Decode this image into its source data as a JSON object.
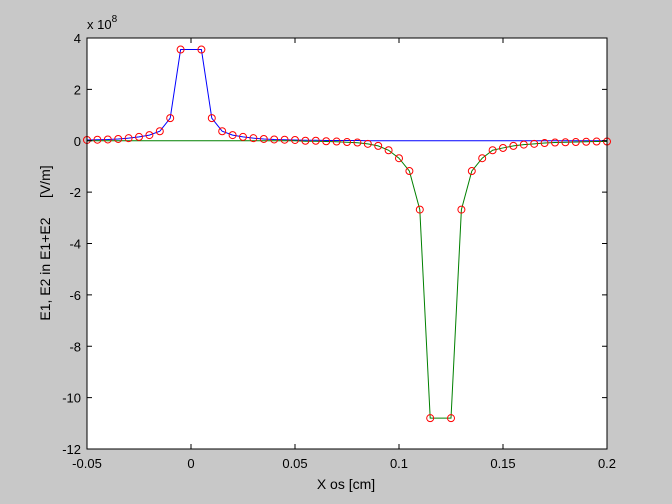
{
  "chart_data": {
    "type": "line",
    "xlabel": "X os   [cm]",
    "ylabel": "E1, E2 in E1+E2     [V/m]",
    "y_exponent_label": "x 10",
    "y_exponent": "8",
    "xlim": [
      -0.05,
      0.2
    ],
    "ylim": [
      -12,
      4
    ],
    "x_ticks": [
      -0.05,
      0,
      0.05,
      0.1,
      0.15,
      0.2
    ],
    "x_tick_labels": [
      "-0.05",
      "0",
      "0.05",
      "0.1",
      "0.15",
      "0.2"
    ],
    "y_ticks": [
      -12,
      -10,
      -8,
      -6,
      -4,
      -2,
      0,
      2,
      4
    ],
    "y_tick_labels": [
      "-12",
      "-10",
      "-8",
      "-6",
      "-4",
      "-2",
      "0",
      "2",
      "4"
    ],
    "grid": false,
    "colors": {
      "background": "#c8c8c8",
      "plot_area": "#ffffff",
      "series_e1": "#0000ff",
      "series_e2": "#008000",
      "markers": "#ff0000"
    },
    "series": [
      {
        "x": [
          -0.05,
          -0.045,
          -0.04,
          -0.035,
          -0.03,
          -0.025,
          -0.02,
          -0.015,
          -0.01,
          -0.005,
          0.005,
          0.01,
          0.015,
          0.02,
          0.025,
          0.03,
          0.035,
          0.04,
          0.045,
          0.05,
          0.055,
          0.06,
          0.065,
          0.07,
          0.075,
          0.08,
          0.085,
          0.09,
          0.095,
          0.1,
          0.105,
          0.11,
          0.115,
          0.125,
          0.13,
          0.135,
          0.14,
          0.145,
          0.15,
          0.155,
          0.16,
          0.165,
          0.17,
          0.175,
          0.18,
          0.185,
          0.19,
          0.195,
          0.2
        ],
        "values": [
          0.03,
          0.04,
          0.05,
          0.07,
          0.1,
          0.15,
          0.22,
          0.37,
          0.88,
          3.55,
          3.55,
          0.88,
          0.37,
          0.22,
          0.15,
          0.1,
          0.07,
          0.05,
          0.04,
          0.03,
          0.02,
          0.02,
          0.01,
          0.01,
          0.01,
          0.01,
          0,
          0,
          0,
          0,
          0,
          0,
          0,
          0,
          0,
          0,
          0,
          0,
          0,
          0,
          0,
          0,
          0,
          0,
          0,
          0,
          0,
          0,
          0
        ]
      },
      {
        "x": [
          -0.05,
          -0.045,
          -0.04,
          -0.035,
          -0.03,
          -0.025,
          -0.02,
          -0.015,
          -0.01,
          -0.005,
          0.005,
          0.01,
          0.015,
          0.02,
          0.025,
          0.03,
          0.035,
          0.04,
          0.045,
          0.05,
          0.055,
          0.06,
          0.065,
          0.07,
          0.075,
          0.08,
          0.085,
          0.09,
          0.095,
          0.1,
          0.105,
          0.11,
          0.115,
          0.125,
          0.13,
          0.135,
          0.14,
          0.145,
          0.15,
          0.155,
          0.16,
          0.165,
          0.17,
          0.175,
          0.18,
          0.185,
          0.19,
          0.195,
          0.2
        ],
        "values": [
          0,
          0,
          0,
          0,
          0,
          0,
          0,
          0,
          0,
          0,
          0,
          0,
          0,
          0,
          0,
          0,
          0,
          0,
          0,
          0,
          -0.02,
          -0.02,
          -0.03,
          -0.04,
          -0.06,
          -0.08,
          -0.12,
          -0.2,
          -0.37,
          -0.68,
          -1.18,
          -2.68,
          -10.8,
          -10.8,
          -2.68,
          -1.18,
          -0.68,
          -0.37,
          -0.28,
          -0.2,
          -0.15,
          -0.12,
          -0.09,
          -0.07,
          -0.06,
          -0.05,
          -0.04,
          -0.03,
          -0.03
        ]
      },
      {
        "x": [
          -0.05,
          -0.045,
          -0.04,
          -0.035,
          -0.03,
          -0.025,
          -0.02,
          -0.015,
          -0.01,
          -0.005,
          0.005,
          0.01,
          0.015,
          0.02,
          0.025,
          0.03,
          0.035,
          0.04,
          0.045,
          0.05,
          0.055,
          0.06,
          0.065,
          0.07,
          0.075,
          0.08,
          0.085,
          0.09,
          0.095,
          0.1,
          0.105,
          0.11,
          0.115,
          0.125,
          0.13,
          0.135,
          0.14,
          0.145,
          0.15,
          0.155,
          0.16,
          0.165,
          0.17,
          0.175,
          0.18,
          0.185,
          0.19,
          0.195,
          0.2
        ],
        "values": [
          0.03,
          0.04,
          0.05,
          0.07,
          0.1,
          0.15,
          0.22,
          0.37,
          0.88,
          3.55,
          3.55,
          0.88,
          0.37,
          0.22,
          0.15,
          0.1,
          0.07,
          0.05,
          0.04,
          0.03,
          0,
          0,
          -0.02,
          -0.03,
          -0.05,
          -0.07,
          -0.12,
          -0.2,
          -0.37,
          -0.68,
          -1.18,
          -2.68,
          -10.8,
          -10.8,
          -2.68,
          -1.18,
          -0.68,
          -0.37,
          -0.28,
          -0.2,
          -0.15,
          -0.12,
          -0.09,
          -0.07,
          -0.06,
          -0.05,
          -0.04,
          -0.03,
          -0.03
        ]
      }
    ]
  }
}
